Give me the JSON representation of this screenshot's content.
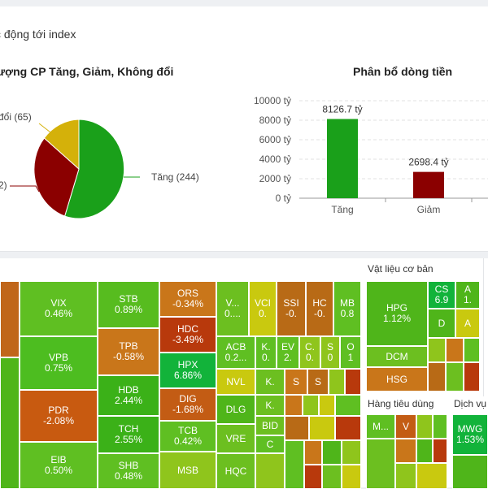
{
  "header": {
    "tab_title": "c động tới index"
  },
  "pie": {
    "title": "ượng CP Tăng, Giảm, Không đổi",
    "labels": {
      "up": "Tăng (244)",
      "flat": "đổi (65)",
      "down": "2)"
    },
    "colors": {
      "up": "#1aa01a",
      "down": "#8b0000",
      "flat": "#d4b10a"
    }
  },
  "bar": {
    "title": "Phân bổ dòng tiền",
    "chart_data": {
      "type": "bar",
      "categories": [
        "Tăng",
        "Giảm"
      ],
      "values": [
        8126.7,
        2698.4
      ],
      "value_labels": [
        "8126.7 tỷ",
        "2698.4 tỷ"
      ],
      "colors": [
        "#1aa01a",
        "#8b0000"
      ],
      "ylim": [
        0,
        10000
      ],
      "yticks": [
        "0 tỷ",
        "2000 tỷ",
        "4000 tỷ",
        "6000 tỷ",
        "8000 tỷ",
        "10000 tỷ"
      ]
    }
  },
  "sectors": {
    "materials": "Vật liệu cơ bản",
    "consumer": "Hàng tiêu dùng",
    "services": "Dịch vụ"
  },
  "tiles": {
    "vix": {
      "sym": "VIX",
      "pct": "0.46%"
    },
    "vpb": {
      "sym": "VPB",
      "pct": "0.75%"
    },
    "pdr": {
      "sym": "PDR",
      "pct": "-2.08%"
    },
    "eib": {
      "sym": "EIB",
      "pct": "0.50%"
    },
    "stb": {
      "sym": "STB",
      "pct": "0.89%"
    },
    "tpb": {
      "sym": "TPB",
      "pct": "-0.58%"
    },
    "hdb": {
      "sym": "HDB",
      "pct": "2.44%"
    },
    "tch": {
      "sym": "TCH",
      "pct": "2.55%"
    },
    "shb": {
      "sym": "SHB",
      "pct": "0.48%"
    },
    "ors": {
      "sym": "ORS",
      "pct": "-0.34%"
    },
    "hdc": {
      "sym": "HDC",
      "pct": "-3.49%"
    },
    "hpx": {
      "sym": "HPX",
      "pct": "6.86%"
    },
    "dig": {
      "sym": "DIG",
      "pct": "-1.68%"
    },
    "tcb": {
      "sym": "TCB",
      "pct": "0.42%"
    },
    "msb": {
      "sym": "MSB",
      "pct": ""
    },
    "v": {
      "sym": "V...",
      "pct": "0...."
    },
    "vci": {
      "sym": "VCI",
      "pct": "0."
    },
    "ssi": {
      "sym": "SSI",
      "pct": "-0."
    },
    "hc": {
      "sym": "HC",
      "pct": "-0."
    },
    "mb": {
      "sym": "MB",
      "pct": "0.8"
    },
    "acb": {
      "sym": "ACB",
      "pct": "0.2..."
    },
    "k1": {
      "sym": "K.",
      "pct": "0."
    },
    "ev": {
      "sym": "EV",
      "pct": "2."
    },
    "c": {
      "sym": "C.",
      "pct": "0."
    },
    "s1": {
      "sym": "S",
      "pct": "0"
    },
    "o": {
      "sym": "O",
      "pct": "1"
    },
    "nvl": {
      "sym": "NVL",
      "pct": ""
    },
    "k2": {
      "sym": "K.",
      "pct": ""
    },
    "s2": {
      "sym": "S",
      "pct": ""
    },
    "s3": {
      "sym": "S",
      "pct": ""
    },
    "dlg": {
      "sym": "DLG",
      "pct": ""
    },
    "k3": {
      "sym": "K.",
      "pct": ""
    },
    "vre": {
      "sym": "VRE",
      "pct": ""
    },
    "bid": {
      "sym": "BID",
      "pct": ""
    },
    "c2": {
      "sym": "C",
      "pct": ""
    },
    "hqc": {
      "sym": "HQC",
      "pct": ""
    },
    "hpg": {
      "sym": "HPG",
      "pct": "1.12%"
    },
    "cs": {
      "sym": "CS",
      "pct": "6.9"
    },
    "a1": {
      "sym": "A",
      "pct": "1."
    },
    "d": {
      "sym": "D",
      "pct": ""
    },
    "a2": {
      "sym": "A",
      "pct": ""
    },
    "dcm": {
      "sym": "DCM",
      "pct": ""
    },
    "hsg": {
      "sym": "HSG",
      "pct": ""
    },
    "m": {
      "sym": "M...",
      "pct": ""
    },
    "vv": {
      "sym": "V",
      "pct": ""
    },
    "mwg": {
      "sym": "MWG",
      "pct": "1.53%"
    }
  }
}
